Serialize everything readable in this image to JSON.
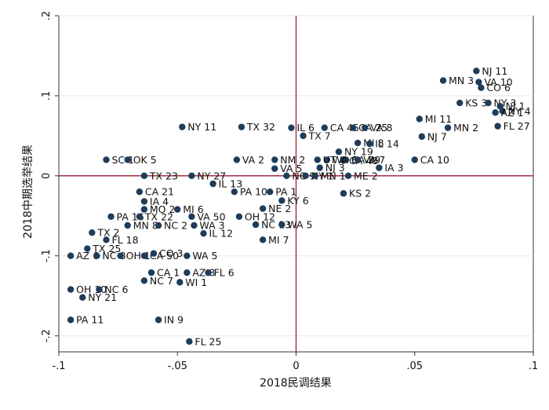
{
  "chart_data": {
    "type": "scatter",
    "xlabel": "2018民调结果",
    "ylabel": "2018中期选举结果",
    "xlim": [
      -0.1,
      0.1
    ],
    "ylim": [
      -0.22,
      0.2
    ],
    "xticks": [
      -0.1,
      -0.05,
      0,
      0.05,
      0.1
    ],
    "xtick_labels": [
      "-.1",
      "-.05",
      "0",
      ".05",
      ".1"
    ],
    "yticks": [
      -0.2,
      -0.1,
      0,
      0.1,
      0.2
    ],
    "ytick_labels": [
      "-.2",
      "-.1",
      "0",
      ".1",
      ".2"
    ],
    "reference_lines": {
      "x": 0,
      "y": 0,
      "color": "#9b1c3a"
    },
    "grid": true,
    "marker_color": "#1f3d5a",
    "points": [
      {
        "label": "NJ 11",
        "x": 0.076,
        "y": 0.131
      },
      {
        "label": "MN 3",
        "x": 0.062,
        "y": 0.119
      },
      {
        "label": "VA 10",
        "x": 0.077,
        "y": 0.117
      },
      {
        "label": "CO 6",
        "x": 0.078,
        "y": 0.11
      },
      {
        "label": "KS 3",
        "x": 0.069,
        "y": 0.091
      },
      {
        "label": "NY 3",
        "x": 0.081,
        "y": 0.091
      },
      {
        "label": "NJ 1",
        "x": 0.086,
        "y": 0.087
      },
      {
        "label": "NY 4",
        "x": 0.087,
        "y": 0.081
      },
      {
        "label": "AZ 1",
        "x": 0.084,
        "y": 0.079
      },
      {
        "label": "FL 27",
        "x": 0.085,
        "y": 0.062
      },
      {
        "label": "MI 11",
        "x": 0.052,
        "y": 0.071
      },
      {
        "label": "MN 2",
        "x": 0.064,
        "y": 0.06
      },
      {
        "label": "NJ 7",
        "x": 0.053,
        "y": 0.049
      },
      {
        "label": "CA 10",
        "x": 0.05,
        "y": 0.02
      },
      {
        "label": "NY 11",
        "x": -0.048,
        "y": 0.061
      },
      {
        "label": "TX 32",
        "x": -0.023,
        "y": 0.061
      },
      {
        "label": "IL 6",
        "x": -0.002,
        "y": 0.06
      },
      {
        "label": "CA 45",
        "x": 0.012,
        "y": 0.06
      },
      {
        "label": "CA 25",
        "x": 0.024,
        "y": 0.06
      },
      {
        "label": "VA 8",
        "x": 0.029,
        "y": 0.06
      },
      {
        "label": "TX 7",
        "x": 0.003,
        "y": 0.05
      },
      {
        "label": "MI 8",
        "x": 0.026,
        "y": 0.041
      },
      {
        "label": "IL 14",
        "x": 0.031,
        "y": 0.04
      },
      {
        "label": "NY 19",
        "x": 0.018,
        "y": 0.03
      },
      {
        "label": "CA 48",
        "x": 0.02,
        "y": 0.019
      },
      {
        "label": "CA 39",
        "x": 0.021,
        "y": 0.02
      },
      {
        "label": "WA 8",
        "x": 0.013,
        "y": 0.02
      },
      {
        "label": "VA 7",
        "x": 0.026,
        "y": 0.02
      },
      {
        "label": "UT 4",
        "x": 0.009,
        "y": 0.02
      },
      {
        "label": "NJ 3",
        "x": 0.01,
        "y": 0.01
      },
      {
        "label": "VA 2",
        "x": -0.025,
        "y": 0.02
      },
      {
        "label": "NM 2",
        "x": -0.009,
        "y": 0.02
      },
      {
        "label": "VA 5",
        "x": -0.009,
        "y": 0.009
      },
      {
        "label": "NC 9",
        "x": -0.004,
        "y": 0.0
      },
      {
        "label": "NY 1",
        "x": 0.004,
        "y": 0.0
      },
      {
        "label": "MN 1",
        "x": 0.008,
        "y": 0.0
      },
      {
        "label": "ME 2",
        "x": 0.022,
        "y": 0.0
      },
      {
        "label": "IA 3",
        "x": 0.035,
        "y": 0.01
      },
      {
        "label": "KS 2",
        "x": 0.02,
        "y": -0.022
      },
      {
        "label": "SC 1",
        "x": -0.08,
        "y": 0.02
      },
      {
        "label": "OK 5",
        "x": -0.071,
        "y": 0.02
      },
      {
        "label": "TX 23",
        "x": -0.064,
        "y": 0.0
      },
      {
        "label": "CA 21",
        "x": -0.066,
        "y": -0.02
      },
      {
        "label": "IA 4",
        "x": -0.064,
        "y": -0.032
      },
      {
        "label": "MO 2",
        "x": -0.064,
        "y": -0.042
      },
      {
        "label": "MI 6",
        "x": -0.05,
        "y": -0.042
      },
      {
        "label": "NY 27",
        "x": -0.044,
        "y": 0.0
      },
      {
        "label": "IL 13",
        "x": -0.035,
        "y": -0.01
      },
      {
        "label": "PA 10",
        "x": -0.026,
        "y": -0.02
      },
      {
        "label": "PA 1",
        "x": -0.011,
        "y": -0.02
      },
      {
        "label": "KY 6",
        "x": -0.006,
        "y": -0.031
      },
      {
        "label": "NE 2",
        "x": -0.014,
        "y": -0.041
      },
      {
        "label": "OH 12",
        "x": -0.024,
        "y": -0.051
      },
      {
        "label": "NC 13",
        "x": -0.017,
        "y": -0.061
      },
      {
        "label": "WA 5",
        "x": -0.006,
        "y": -0.061
      },
      {
        "label": "PA 16",
        "x": -0.078,
        "y": -0.051
      },
      {
        "label": "TX 22",
        "x": -0.066,
        "y": -0.051
      },
      {
        "label": "VA 50",
        "x": -0.044,
        "y": -0.051
      },
      {
        "label": "MN 8",
        "x": -0.071,
        "y": -0.062
      },
      {
        "label": "NC 2",
        "x": -0.058,
        "y": -0.062
      },
      {
        "label": "WA 3",
        "x": -0.043,
        "y": -0.062
      },
      {
        "label": "IL 12",
        "x": -0.039,
        "y": -0.072
      },
      {
        "label": "MI 7",
        "x": -0.014,
        "y": -0.08
      },
      {
        "label": "TX 2",
        "x": -0.086,
        "y": -0.071
      },
      {
        "label": "FL 18",
        "x": -0.08,
        "y": -0.08
      },
      {
        "label": "TX 25",
        "x": -0.088,
        "y": -0.091
      },
      {
        "label": "AZ 6",
        "x": -0.095,
        "y": -0.1
      },
      {
        "label": "NC 8",
        "x": -0.084,
        "y": -0.1
      },
      {
        "label": "OH 1",
        "x": -0.074,
        "y": -0.1
      },
      {
        "label": "CA 50",
        "x": -0.064,
        "y": -0.1
      },
      {
        "label": "CO 3",
        "x": -0.06,
        "y": -0.097
      },
      {
        "label": "WA 5",
        "x": -0.046,
        "y": -0.1
      },
      {
        "label": "CA 1",
        "x": -0.061,
        "y": -0.121
      },
      {
        "label": "AZ 8",
        "x": -0.046,
        "y": -0.121
      },
      {
        "label": "FL 6",
        "x": -0.037,
        "y": -0.121
      },
      {
        "label": "NC 7",
        "x": -0.064,
        "y": -0.131
      },
      {
        "label": "WI 1",
        "x": -0.049,
        "y": -0.133
      },
      {
        "label": "OH 10",
        "x": -0.095,
        "y": -0.142
      },
      {
        "label": "NC 6",
        "x": -0.083,
        "y": -0.142
      },
      {
        "label": "NY 21",
        "x": -0.09,
        "y": -0.152
      },
      {
        "label": "PA 11",
        "x": -0.095,
        "y": -0.18
      },
      {
        "label": "IN 9",
        "x": -0.058,
        "y": -0.18
      },
      {
        "label": "FL 25",
        "x": -0.045,
        "y": -0.207
      }
    ]
  }
}
